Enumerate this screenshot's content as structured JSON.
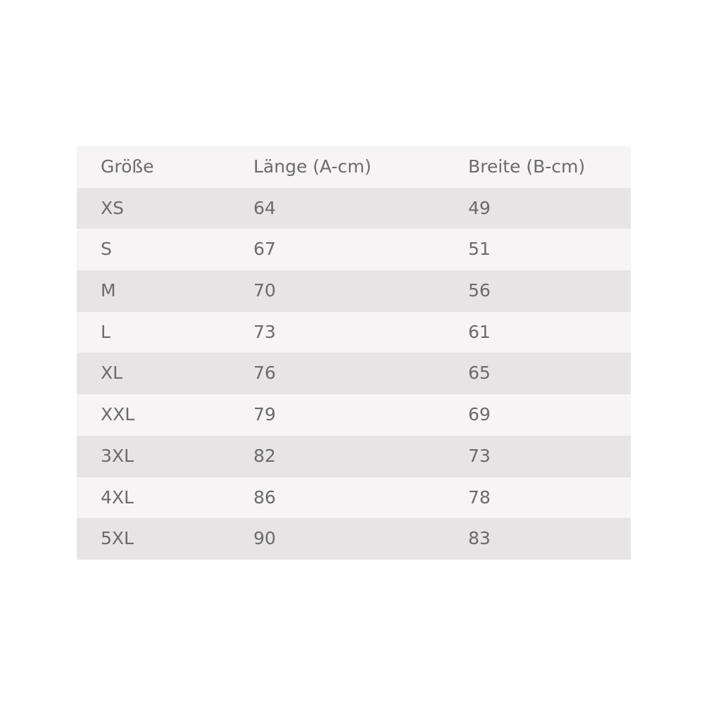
{
  "table": {
    "headers": [
      "Größe",
      "Länge (A-cm)",
      "Breite (B-cm)"
    ],
    "rows": [
      [
        "XS",
        "64",
        "49"
      ],
      [
        "S",
        "67",
        "51"
      ],
      [
        "M",
        "70",
        "56"
      ],
      [
        "L",
        "73",
        "61"
      ],
      [
        "XL",
        "76",
        "65"
      ],
      [
        "XXL",
        "79",
        "69"
      ],
      [
        "3XL",
        "82",
        "73"
      ],
      [
        "4XL",
        "86",
        "78"
      ],
      [
        "5XL",
        "90",
        "83"
      ]
    ]
  },
  "colors": {
    "row_light": "#f6f4f5",
    "row_dark": "#e6e4e5",
    "text": "#6b6b6b"
  }
}
